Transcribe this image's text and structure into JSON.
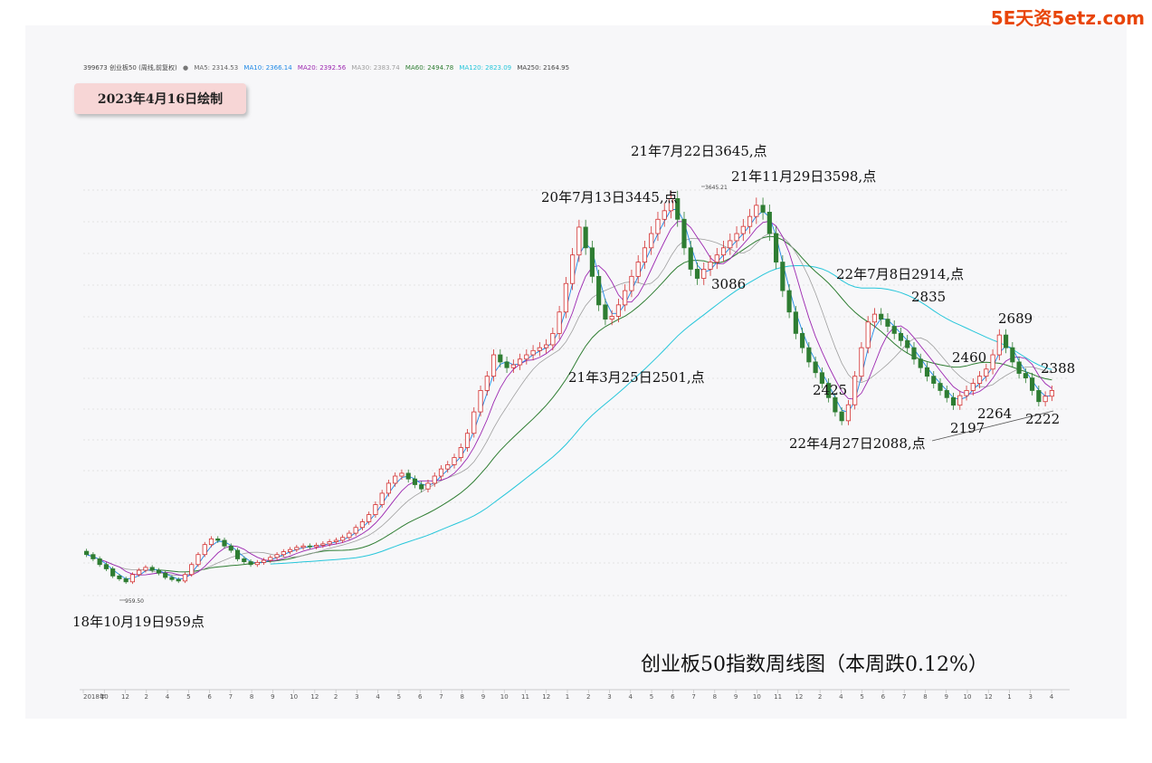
{
  "watermark": "5E天资5etz.com",
  "legend": {
    "symbol": "399673 创业板50 (周线,前复权)",
    "items": [
      {
        "label": "MA5: 2314.53",
        "color": "#666666"
      },
      {
        "label": "MA10: 2366.14",
        "color": "#1e88e5"
      },
      {
        "label": "MA20: 2392.56",
        "color": "#9c27b0"
      },
      {
        "label": "MA30: 2383.74",
        "color": "#9e9e9e"
      },
      {
        "label": "MA60: 2494.78",
        "color": "#2e7d32"
      },
      {
        "label": "MA120: 2823.09",
        "color": "#26c6da"
      },
      {
        "label": "MA250: 2164.95",
        "color": "#444444"
      }
    ]
  },
  "date_label": "2023年4月16日绘制",
  "chart_data": {
    "type": "candlestick",
    "title": "创业板50指数周线图（本周跌0.12%）",
    "ylim": [
      850,
      3800
    ],
    "x_tick_labels": [
      "2018年",
      "10",
      "12",
      "2",
      "4",
      "5",
      "6",
      "7",
      "8",
      "9",
      "10",
      "12",
      "2",
      "3",
      "4",
      "5",
      "6",
      "7",
      "8",
      "9",
      "10",
      "11",
      "12",
      "1",
      "2",
      "3",
      "4",
      "5",
      "6",
      "7",
      "8",
      "9",
      "10",
      "11",
      "12",
      "2",
      "4",
      "5",
      "6",
      "7",
      "8",
      "9",
      "10",
      "12",
      "1",
      "3",
      "4"
    ],
    "key_points": [
      {
        "label": "18年10月19日959点",
        "value": 959
      },
      {
        "label": "959.50",
        "value": 959.5
      },
      {
        "label": "20年7月13日3445,点",
        "value": 3445
      },
      {
        "label": "21年3月25日2501,点",
        "value": 2501
      },
      {
        "label": "21年7月22日3645,点",
        "value": 3645
      },
      {
        "label": "3645.21",
        "value": 3645.21
      },
      {
        "label": "21年11月29日3598,点",
        "value": 3598
      },
      {
        "label": "3086",
        "value": 3086
      },
      {
        "label": "22年4月27日2088,点",
        "value": 2088
      },
      {
        "label": "2425",
        "value": 2425
      },
      {
        "label": "22年7月8日2914,点",
        "value": 2914
      },
      {
        "label": "2835",
        "value": 2835
      },
      {
        "label": "2460",
        "value": 2460
      },
      {
        "label": "2197",
        "value": 2197
      },
      {
        "label": "2264",
        "value": 2264
      },
      {
        "label": "2689",
        "value": 2689
      },
      {
        "label": "2388",
        "value": 2388
      },
      {
        "label": "2222",
        "value": 2222
      }
    ],
    "close_path": [
      1150,
      1120,
      1080,
      1050,
      1000,
      980,
      959,
      1010,
      1040,
      1060,
      1040,
      1020,
      990,
      975,
      965,
      1010,
      1080,
      1150,
      1220,
      1260,
      1250,
      1210,
      1180,
      1120,
      1100,
      1080,
      1095,
      1110,
      1130,
      1150,
      1170,
      1185,
      1200,
      1210,
      1205,
      1215,
      1225,
      1240,
      1250,
      1270,
      1300,
      1340,
      1380,
      1430,
      1500,
      1580,
      1650,
      1700,
      1720,
      1680,
      1640,
      1610,
      1650,
      1700,
      1750,
      1780,
      1830,
      1900,
      2000,
      2150,
      2300,
      2400,
      2550,
      2500,
      2460,
      2480,
      2520,
      2550,
      2580,
      2600,
      2620,
      2700,
      2850,
      3050,
      3250,
      3445,
      3300,
      3100,
      2900,
      2800,
      2820,
      2900,
      3000,
      3100,
      3200,
      3300,
      3400,
      3500,
      3560,
      3645,
      3500,
      3300,
      3150,
      3086,
      3150,
      3200,
      3250,
      3300,
      3350,
      3400,
      3450,
      3520,
      3598,
      3550,
      3400,
      3200,
      3000,
      2850,
      2700,
      2600,
      2500,
      2425,
      2350,
      2250,
      2150,
      2088,
      2200,
      2400,
      2600,
      2780,
      2835,
      2800,
      2750,
      2700,
      2650,
      2600,
      2520,
      2460,
      2400,
      2350,
      2300,
      2250,
      2197,
      2264,
      2300,
      2350,
      2400,
      2450,
      2550,
      2689,
      2600,
      2500,
      2420,
      2388,
      2300,
      2222,
      2260,
      2300
    ],
    "series": [
      {
        "name": "MA5",
        "value": 2314.53
      },
      {
        "name": "MA10",
        "value": 2366.14
      },
      {
        "name": "MA20",
        "value": 2392.56
      },
      {
        "name": "MA30",
        "value": 2383.74
      },
      {
        "name": "MA60",
        "value": 2494.78
      },
      {
        "name": "MA120",
        "value": 2823.09
      },
      {
        "name": "MA250",
        "value": 2164.95
      }
    ],
    "colors": {
      "up": "#d32f2f",
      "down": "#2e7d32",
      "ma120": "#26c6da",
      "ma60": "#2e7d32",
      "ma20": "#9c27b0",
      "ma10": "#1e88e5",
      "ma30": "#9e9e9e"
    }
  }
}
